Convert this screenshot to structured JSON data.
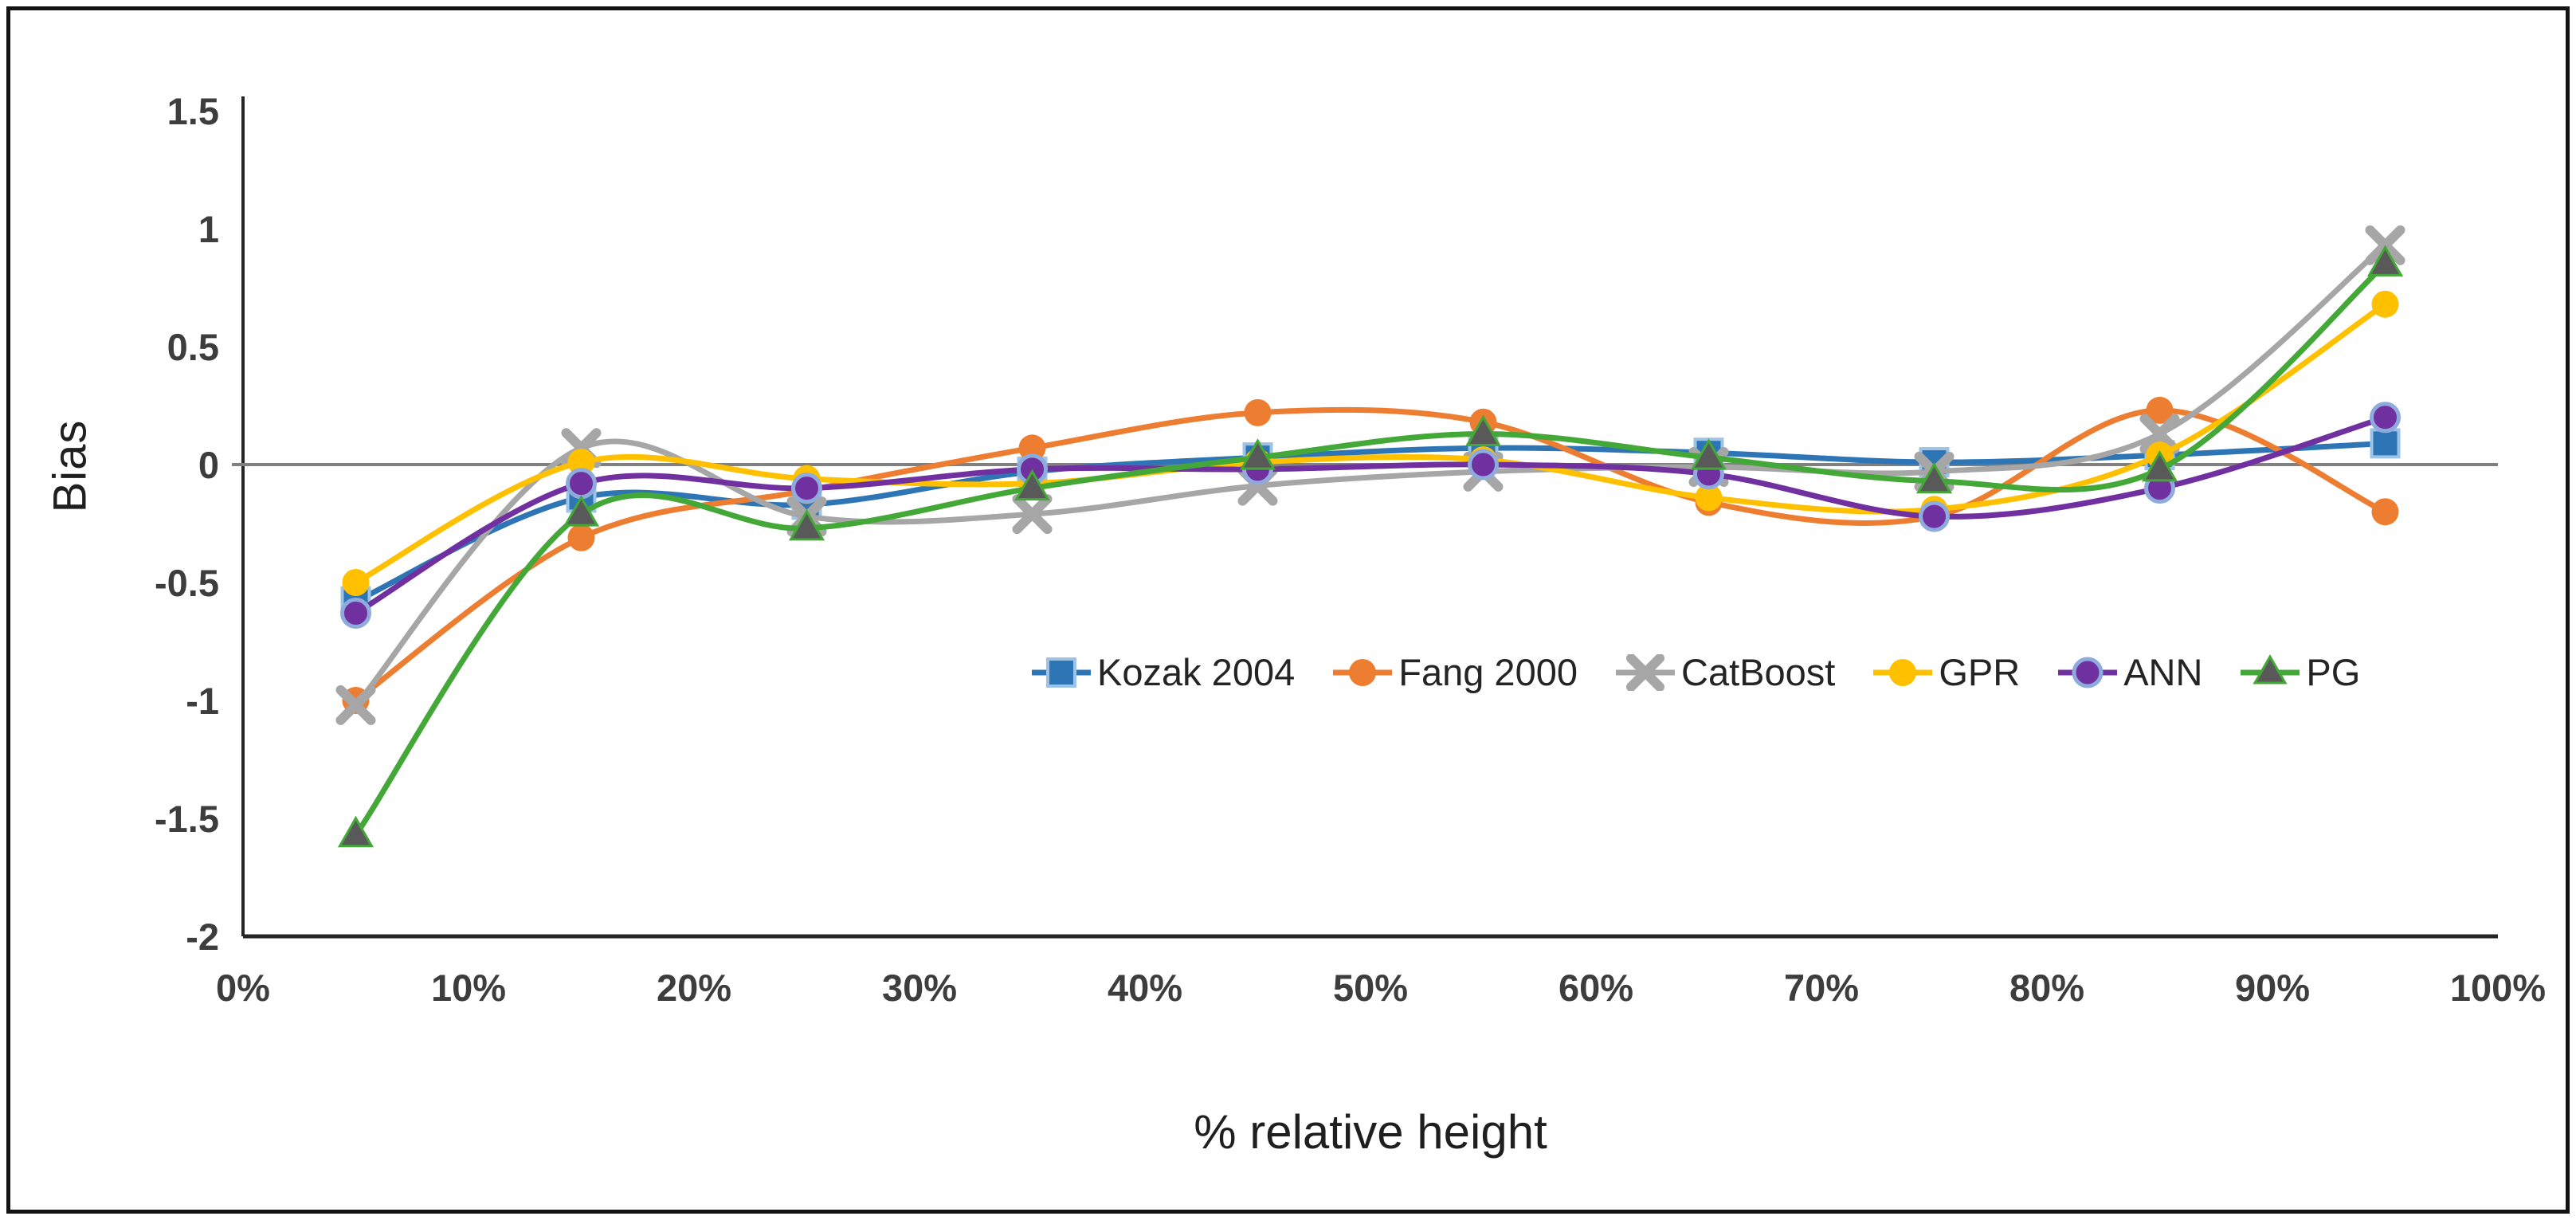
{
  "chart_data": {
    "type": "line",
    "title": "",
    "xlabel": "% relative height",
    "ylabel": "Bias",
    "xlim": [
      0,
      100
    ],
    "ylim": [
      -2,
      1.5
    ],
    "x_ticks": [
      "0%",
      "10%",
      "20%",
      "30%",
      "40%",
      "50%",
      "60%",
      "70%",
      "80%",
      "90%",
      "100%"
    ],
    "x_tick_values": [
      0,
      10,
      20,
      30,
      40,
      50,
      60,
      70,
      80,
      90,
      100
    ],
    "y_ticks": [
      "1.5",
      "1",
      "0.5",
      "0",
      "-0.5",
      "-1",
      "-1.5",
      "-2"
    ],
    "y_tick_values": [
      1.5,
      1,
      0.5,
      0,
      -0.5,
      -1,
      -1.5,
      -2
    ],
    "grid": false,
    "zero_line": true,
    "zero_line_color": "#808080",
    "axis_color": "#262626",
    "legend_position": "inside-center-right",
    "smooth_lines": true,
    "x": [
      5,
      15,
      25,
      35,
      45,
      55,
      65,
      75,
      85,
      95
    ],
    "series": [
      {
        "name": "Kozak 2004",
        "line_color": "#2E75B6",
        "marker": "square",
        "marker_fill": "#2E75B6",
        "marker_stroke": "#9DC3E6",
        "values": [
          -0.58,
          -0.14,
          -0.17,
          -0.03,
          0.03,
          0.07,
          0.05,
          0.01,
          0.04,
          0.09
        ]
      },
      {
        "name": "Fang 2000",
        "line_color": "#ED7D31",
        "marker": "circle",
        "marker_fill": "#ED7D31",
        "marker_stroke": "none",
        "values": [
          -1.0,
          -0.31,
          -0.11,
          0.07,
          0.22,
          0.18,
          -0.16,
          -0.22,
          0.23,
          -0.2
        ]
      },
      {
        "name": "CatBoost",
        "line_color": "#A6A6A6",
        "marker": "x",
        "marker_fill": "#A6A6A6",
        "marker_stroke": "#A6A6A6",
        "values": [
          -1.02,
          0.07,
          -0.22,
          -0.21,
          -0.09,
          -0.03,
          -0.01,
          -0.03,
          0.13,
          0.93
        ]
      },
      {
        "name": "GPR",
        "line_color": "#FFC000",
        "marker": "circle",
        "marker_fill": "#FFC000",
        "marker_stroke": "none",
        "values": [
          -0.5,
          0.01,
          -0.06,
          -0.08,
          0.01,
          0.02,
          -0.14,
          -0.19,
          0.04,
          0.68
        ]
      },
      {
        "name": "ANN",
        "line_color": "#7030A0",
        "marker": "circle",
        "marker_fill": "#7030A0",
        "marker_stroke": "#8FAADC",
        "values": [
          -0.63,
          -0.08,
          -0.1,
          -0.02,
          -0.02,
          0.0,
          -0.04,
          -0.22,
          -0.1,
          0.2
        ]
      },
      {
        "name": "PG",
        "line_color": "#44A838",
        "marker": "triangle",
        "marker_fill": "#595959",
        "marker_stroke": "#44A838",
        "values": [
          -1.57,
          -0.21,
          -0.27,
          -0.1,
          0.03,
          0.13,
          0.03,
          -0.07,
          -0.02,
          0.85
        ]
      }
    ]
  }
}
